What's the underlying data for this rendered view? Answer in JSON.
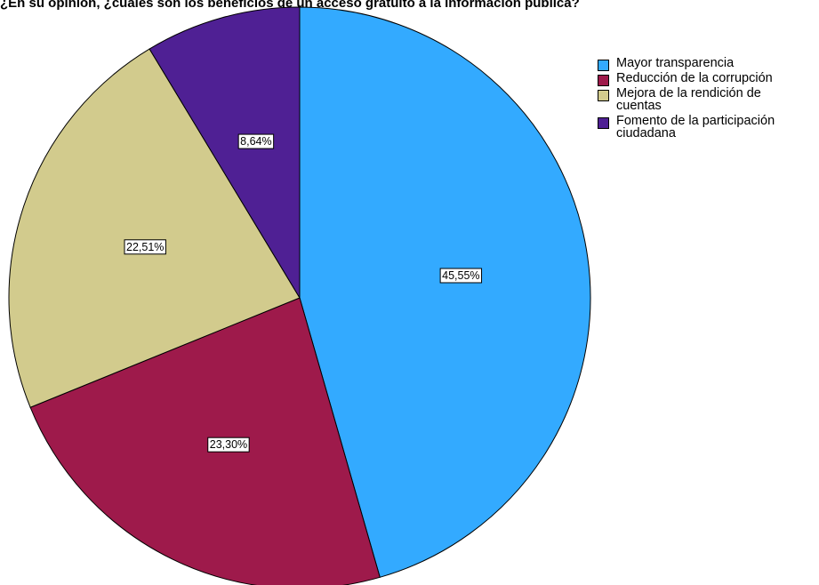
{
  "chart_data": {
    "type": "pie",
    "title": "¿En su opinión, ¿cuáles son los beneficios de un acceso gratuito a la información pública?",
    "slices": [
      {
        "name": "Mayor transparencia",
        "value": 45.55,
        "label": "45,55%",
        "color": "#33aaff"
      },
      {
        "name": "Reducción de la corrupción",
        "value": 23.3,
        "label": "23,30%",
        "color": "#9e1a4b"
      },
      {
        "name": "Mejora de la rendición de cuentas",
        "value": 22.51,
        "label": "22,51%",
        "color": "#d2cb8d"
      },
      {
        "name": "Fomento de la participación ciudadana",
        "value": 8.64,
        "label": "8,64%",
        "color": "#4f2094"
      }
    ],
    "start_angle_deg": 0,
    "direction": "clockwise",
    "legend_position": "top-right"
  },
  "legend": {
    "items": [
      {
        "label_line1": "Mayor transparencia",
        "label_line2": ""
      },
      {
        "label_line1": "Reducción de la corrupción",
        "label_line2": ""
      },
      {
        "label_line1": "Mejora de la rendición de",
        "label_line2": "cuentas"
      },
      {
        "label_line1": "Fomento de la participación",
        "label_line2": "ciudadana"
      }
    ]
  }
}
